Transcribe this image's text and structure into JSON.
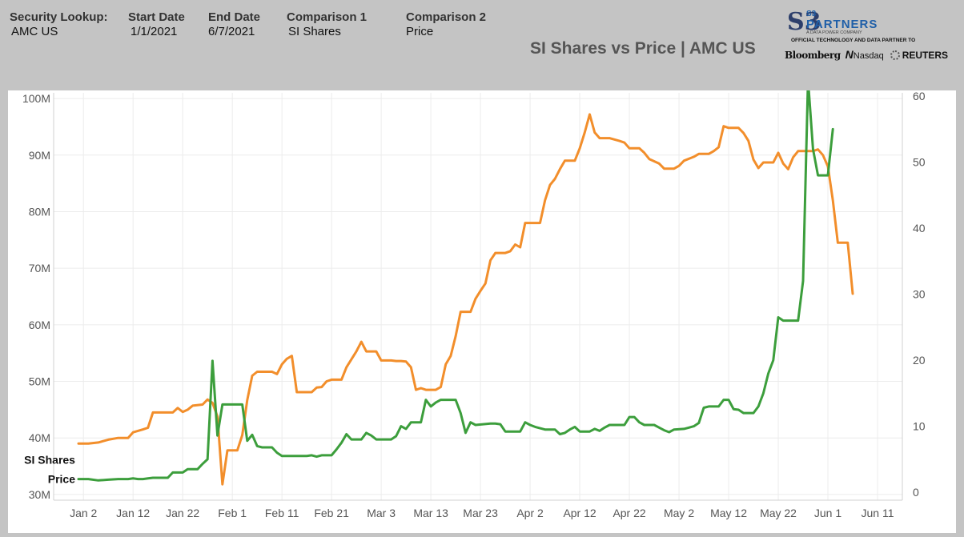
{
  "header": {
    "security_label": "Security Lookup:",
    "security_value": "AMC US",
    "start_label": "Start Date",
    "start_value": "1/1/2021",
    "end_label": "End Date",
    "end_value": "6/7/2021",
    "comp1_label": "Comparison 1",
    "comp1_value": "SI Shares",
    "comp2_label": "Comparison 2",
    "comp2_value": "Price"
  },
  "logo": {
    "mark": "S3",
    "brand_top": "S3",
    "brand": "PARTNERS",
    "tagline": "A DATA POWER COMPANY",
    "official": "OFFICIAL TECHNOLOGY AND DATA PARTNER TO",
    "partner1": "Bloomberg",
    "partner2_mark": "N",
    "partner2": "Nasdaq",
    "partner3": "REUTERS"
  },
  "chart_data": {
    "type": "line",
    "title": "SI Shares vs Price | AMC US",
    "x_ticks": [
      "Jan 2",
      "Jan 12",
      "Jan 22",
      "Feb 1",
      "Feb 11",
      "Feb 21",
      "Mar 3",
      "Mar 13",
      "Mar 23",
      "Apr 2",
      "Apr 12",
      "Apr 22",
      "May 2",
      "May 12",
      "May 22",
      "Jun 1",
      "Jun 11"
    ],
    "x_tick_days": [
      1,
      11,
      21,
      31,
      41,
      51,
      61,
      71,
      81,
      91,
      101,
      111,
      121,
      131,
      141,
      151,
      161
    ],
    "x_range_days": [
      -5,
      166
    ],
    "y_left": {
      "ticks": [
        "30M",
        "40M",
        "50M",
        "60M",
        "70M",
        "80M",
        "90M",
        "100M"
      ],
      "tick_values": [
        30,
        40,
        50,
        60,
        70,
        80,
        90,
        100
      ],
      "range": [
        29,
        101
      ],
      "unit": "M"
    },
    "y_right": {
      "ticks": [
        "0",
        "10",
        "20",
        "30",
        "40",
        "50",
        "60"
      ],
      "tick_values": [
        0,
        10,
        20,
        30,
        40,
        50,
        60
      ],
      "range": [
        -1.2,
        60.5
      ]
    },
    "grid": true,
    "series": [
      {
        "name": "SI Shares",
        "color": "#f28e2b",
        "axis": "left",
        "points": [
          [
            0,
            39
          ],
          [
            2,
            39
          ],
          [
            4,
            39.2
          ],
          [
            6,
            39.7
          ],
          [
            8,
            40
          ],
          [
            10,
            40
          ],
          [
            11,
            41
          ],
          [
            13,
            41.5
          ],
          [
            14,
            41.8
          ],
          [
            15,
            44.5
          ],
          [
            17,
            44.5
          ],
          [
            19,
            44.5
          ],
          [
            20,
            45.3
          ],
          [
            21,
            44.6
          ],
          [
            22,
            45
          ],
          [
            23,
            45.7
          ],
          [
            25,
            45.9
          ],
          [
            26,
            46.8
          ],
          [
            27,
            46.2
          ],
          [
            28,
            43.8
          ],
          [
            29,
            31.8
          ],
          [
            30,
            37.8
          ],
          [
            32,
            37.8
          ],
          [
            33,
            40.5
          ],
          [
            34,
            46.7
          ],
          [
            35,
            51
          ],
          [
            36,
            51.7
          ],
          [
            39,
            51.7
          ],
          [
            40,
            51.3
          ],
          [
            41,
            53
          ],
          [
            42,
            54
          ],
          [
            43,
            54.5
          ],
          [
            44,
            48.1
          ],
          [
            47,
            48.1
          ],
          [
            48,
            48.9
          ],
          [
            49,
            49
          ],
          [
            50,
            50
          ],
          [
            51,
            50.3
          ],
          [
            53,
            50.3
          ],
          [
            54,
            52.5
          ],
          [
            56,
            55.3
          ],
          [
            57,
            57
          ],
          [
            58,
            55.3
          ],
          [
            60,
            55.3
          ],
          [
            61,
            53.7
          ],
          [
            62,
            53.7
          ],
          [
            63,
            53.7
          ],
          [
            64,
            53.6
          ],
          [
            65,
            53.6
          ],
          [
            66,
            53.5
          ],
          [
            67,
            52.5
          ],
          [
            68,
            48.5
          ],
          [
            69,
            48.8
          ],
          [
            70,
            48.5
          ],
          [
            72,
            48.5
          ],
          [
            73,
            49
          ],
          [
            74,
            53
          ],
          [
            75,
            54.5
          ],
          [
            76,
            58
          ],
          [
            77,
            62.3
          ],
          [
            79,
            62.3
          ],
          [
            80,
            64.6
          ],
          [
            81,
            66
          ],
          [
            82,
            67.3
          ],
          [
            83,
            71.4
          ],
          [
            84,
            72.7
          ],
          [
            86,
            72.7
          ],
          [
            87,
            73
          ],
          [
            88,
            74.2
          ],
          [
            89,
            73.7
          ],
          [
            90,
            78
          ],
          [
            93,
            78
          ],
          [
            94,
            82
          ],
          [
            95,
            84.7
          ],
          [
            96,
            85.8
          ],
          [
            97,
            87.5
          ],
          [
            98,
            89
          ],
          [
            100,
            89
          ],
          [
            101,
            91.2
          ],
          [
            102,
            94
          ],
          [
            103,
            97.2
          ],
          [
            104,
            94
          ],
          [
            105,
            93
          ],
          [
            107,
            93
          ],
          [
            109,
            92.5
          ],
          [
            110,
            92.2
          ],
          [
            111,
            91.2
          ],
          [
            113,
            91.2
          ],
          [
            114,
            90.4
          ],
          [
            115,
            89.3
          ],
          [
            117,
            88.5
          ],
          [
            118,
            87.6
          ],
          [
            120,
            87.6
          ],
          [
            121,
            88.1
          ],
          [
            122,
            89
          ],
          [
            124,
            89.7
          ],
          [
            125,
            90.2
          ],
          [
            127,
            90.2
          ],
          [
            128,
            90.7
          ],
          [
            129,
            91.4
          ],
          [
            130,
            95.1
          ],
          [
            131,
            94.8
          ],
          [
            133,
            94.8
          ],
          [
            134,
            93.9
          ],
          [
            135,
            92.5
          ],
          [
            136,
            89.2
          ],
          [
            137,
            87.7
          ],
          [
            138,
            88.7
          ],
          [
            140,
            88.7
          ],
          [
            141,
            90.4
          ],
          [
            142,
            88.5
          ],
          [
            143,
            87.5
          ],
          [
            144,
            89.6
          ],
          [
            145,
            90.7
          ],
          [
            148,
            90.7
          ],
          [
            149,
            91
          ],
          [
            150,
            90
          ],
          [
            151,
            88
          ],
          [
            152,
            82
          ],
          [
            153,
            74.5
          ],
          [
            155,
            74.5
          ],
          [
            156,
            65.5
          ]
        ]
      },
      {
        "name": "Price",
        "color": "#3c9e3c",
        "axis": "right",
        "points": [
          [
            0,
            2
          ],
          [
            2,
            2
          ],
          [
            4,
            1.8
          ],
          [
            6,
            1.9
          ],
          [
            8,
            2
          ],
          [
            10,
            2
          ],
          [
            11,
            2.1
          ],
          [
            12,
            2
          ],
          [
            13,
            2
          ],
          [
            14,
            2.1
          ],
          [
            15,
            2.2
          ],
          [
            18,
            2.2
          ],
          [
            19,
            3
          ],
          [
            21,
            3
          ],
          [
            22,
            3.5
          ],
          [
            24,
            3.5
          ],
          [
            25,
            4.3
          ],
          [
            26,
            5
          ],
          [
            27,
            19.9
          ],
          [
            28,
            8.6
          ],
          [
            29,
            13.3
          ],
          [
            32,
            13.3
          ],
          [
            33,
            13.3
          ],
          [
            34,
            7.8
          ],
          [
            35,
            8.7
          ],
          [
            36,
            7
          ],
          [
            37,
            6.8
          ],
          [
            39,
            6.8
          ],
          [
            40,
            6
          ],
          [
            41,
            5.5
          ],
          [
            43,
            5.5
          ],
          [
            46,
            5.5
          ],
          [
            47,
            5.6
          ],
          [
            48,
            5.4
          ],
          [
            49,
            5.6
          ],
          [
            51,
            5.6
          ],
          [
            52,
            6.5
          ],
          [
            53,
            7.5
          ],
          [
            54,
            8.8
          ],
          [
            55,
            8
          ],
          [
            57,
            8
          ],
          [
            58,
            9
          ],
          [
            59,
            8.6
          ],
          [
            60,
            8
          ],
          [
            63,
            8
          ],
          [
            64,
            8.5
          ],
          [
            65,
            10
          ],
          [
            66,
            9.6
          ],
          [
            67,
            10.6
          ],
          [
            69,
            10.6
          ],
          [
            70,
            14
          ],
          [
            71,
            13
          ],
          [
            72,
            13.6
          ],
          [
            73,
            14
          ],
          [
            76,
            14
          ],
          [
            77,
            12
          ],
          [
            78,
            9
          ],
          [
            79,
            10.6
          ],
          [
            80,
            10.2
          ],
          [
            83,
            10.4
          ],
          [
            84,
            10.4
          ],
          [
            85,
            10.3
          ],
          [
            86,
            9.2
          ],
          [
            89,
            9.2
          ],
          [
            90,
            10.6
          ],
          [
            91,
            10.2
          ],
          [
            92,
            9.9
          ],
          [
            94,
            9.5
          ],
          [
            96,
            9.5
          ],
          [
            97,
            8.8
          ],
          [
            98,
            9
          ],
          [
            99,
            9.5
          ],
          [
            100,
            9.9
          ],
          [
            101,
            9.2
          ],
          [
            103,
            9.2
          ],
          [
            104,
            9.6
          ],
          [
            105,
            9.3
          ],
          [
            106,
            9.8
          ],
          [
            107,
            10.2
          ],
          [
            110,
            10.2
          ],
          [
            111,
            11.4
          ],
          [
            112,
            11.4
          ],
          [
            113,
            10.6
          ],
          [
            114,
            10.2
          ],
          [
            116,
            10.2
          ],
          [
            117,
            9.8
          ],
          [
            118,
            9.4
          ],
          [
            119,
            9.1
          ],
          [
            120,
            9.5
          ],
          [
            122,
            9.6
          ],
          [
            123,
            9.8
          ],
          [
            124,
            10
          ],
          [
            125,
            10.5
          ],
          [
            126,
            12.8
          ],
          [
            127,
            13
          ],
          [
            129,
            13
          ],
          [
            130,
            14
          ],
          [
            131,
            14
          ],
          [
            132,
            12.6
          ],
          [
            133,
            12.5
          ],
          [
            134,
            12
          ],
          [
            136,
            12
          ],
          [
            137,
            13
          ],
          [
            138,
            15
          ],
          [
            139,
            18
          ],
          [
            140,
            20
          ],
          [
            141,
            26.5
          ],
          [
            142,
            26
          ],
          [
            145,
            26
          ],
          [
            146,
            32
          ],
          [
            147,
            62.5
          ],
          [
            148,
            52
          ],
          [
            149,
            48
          ],
          [
            151,
            48
          ],
          [
            152,
            55
          ]
        ]
      }
    ],
    "series_labels": [
      {
        "text": "SI Shares",
        "series": 0
      },
      {
        "text": "Price",
        "series": 1
      }
    ]
  }
}
